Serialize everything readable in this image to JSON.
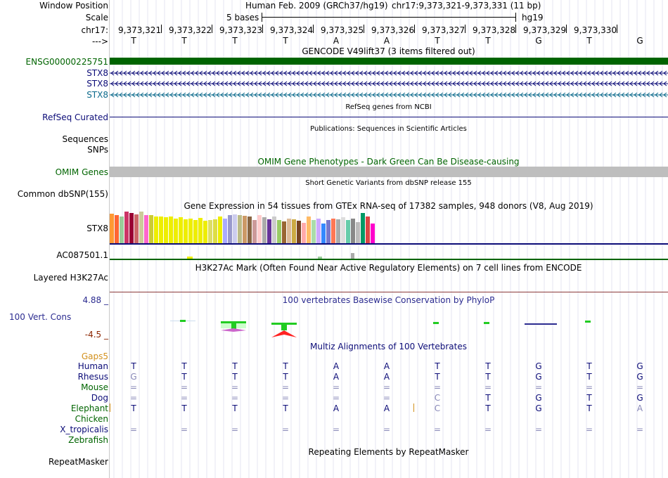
{
  "labels": {
    "window_position": "Window Position",
    "scale": "Scale",
    "chrom": "chr17:",
    "arrow": "--->",
    "ensg": "ENSG00000225751",
    "stx8_1": "STX8",
    "stx8_2": "STX8",
    "stx8_3": "STX8",
    "refseq": "RefSeq Curated",
    "sequences": "Sequences",
    "snps": "SNPs",
    "omim": "OMIM Genes",
    "dbsnp": "Common dbSNP(155)",
    "gtex_gene": "STX8",
    "ac087501": "AC087501.1",
    "h3k27ac": "Layered H3K27Ac",
    "cons_max": "4.88 _",
    "cons": "100 Vert. Cons",
    "cons_min": "-4.5 _",
    "gaps": "Gaps5",
    "species": [
      "Human",
      "Rhesus",
      "Mouse",
      "Dog",
      "Elephant",
      "Chicken",
      "X_tropicalis",
      "Zebrafish"
    ],
    "repeatmasker": "RepeatMasker"
  },
  "header": {
    "assembly": "Human Feb. 2009 (GRCh37/hg19)",
    "position": "chr17:9,373,321-9,373,331 (11 bp)",
    "scale_text": "5 bases",
    "scale_db": "hg19",
    "coords": [
      "9,373,321",
      "9,373,322",
      "9,373,323",
      "9,373,324",
      "9,373,325",
      "9,373,326",
      "9,373,327",
      "9,373,328",
      "9,373,329",
      "9,373,330"
    ],
    "bases": [
      "T",
      "T",
      "T",
      "T",
      "A",
      "A",
      "T",
      "T",
      "G",
      "T",
      "G"
    ]
  },
  "titles": {
    "gencode": "GENCODE V49lift37 (3 items filtered out)",
    "refseq": "RefSeq genes from NCBI",
    "publications": "Publications: Sequences in Scientific Articles",
    "omim": "OMIM Gene Phenotypes - Dark Green Can Be Disease-causing",
    "dbsnp": "Short Genetic Variants from dbSNP release 155",
    "gtex": "Gene Expression in 54 tissues from GTEx RNA-seq of 17382 samples, 948 donors (V8, Aug 2019)",
    "h3k27ac": "H3K27Ac Mark (Often Found Near Active Regulatory Elements) on 7 cell lines from ENCODE",
    "phylop": "100 vertebrates Basewise Conservation by PhyloP",
    "multiz": "Multiz Alignments of 100 Vertebrates",
    "repeatmasker": "Repeating Elements by RepeatMasker"
  },
  "alignment": [
    [
      "T",
      "T",
      "T",
      "T",
      "A",
      "A",
      "T",
      "T",
      "G",
      "T",
      "G"
    ],
    [
      "G",
      "T",
      "T",
      "T",
      "A",
      "A",
      "T",
      "T",
      "G",
      "T",
      "G"
    ],
    [
      "=",
      "=",
      "=",
      "=",
      "=",
      "=",
      "=",
      "=",
      "=",
      "=",
      "="
    ],
    [
      "=",
      "=",
      "=",
      "=",
      "=",
      "=",
      "C",
      "T",
      "G",
      "T",
      "G"
    ],
    [
      "T",
      "T",
      "T",
      "T",
      "A",
      "A",
      "C",
      "T",
      "G",
      "T",
      "A"
    ],
    [
      "",
      "",
      "",
      "",
      "",
      "",
      "",
      "",
      "",
      "",
      ""
    ],
    [
      "=",
      "=",
      "=",
      "=",
      "=",
      "=",
      "=",
      "=",
      "=",
      "=",
      "="
    ],
    [
      "",
      "",
      "",
      "",
      "",
      "",
      "",
      "",
      "",
      "",
      ""
    ]
  ],
  "gtex_levels": [
    0.9,
    0.85,
    0.8,
    0.95,
    0.92,
    0.88,
    0.96,
    0.86,
    0.85,
    0.8,
    0.8,
    0.78,
    0.8,
    0.75,
    0.78,
    0.72,
    0.74,
    0.7,
    0.76,
    0.68,
    0.7,
    0.72,
    0.8,
    0.74,
    0.85,
    0.88,
    0.86,
    0.84,
    0.8,
    0.7,
    0.85,
    0.78,
    0.72,
    0.8,
    0.7,
    0.65,
    0.75,
    0.72,
    0.68,
    0.62,
    0.8,
    0.7,
    0.74,
    0.6,
    0.7,
    0.75,
    0.72,
    0.78,
    0.7,
    0.74,
    0.64,
    0.92,
    0.8,
    0.6
  ],
  "gtex_colors": [
    "#ff9933",
    "#ff6633",
    "#99cc99",
    "#cc3366",
    "#990033",
    "#cc6666",
    "#cccc99",
    "#ff66cc",
    "#cccc33",
    "#eeee00",
    "#eeee00",
    "#eeee00",
    "#eeee00",
    "#eeee00",
    "#eeee00",
    "#eeee00",
    "#eeee00",
    "#eeee00",
    "#eeee00",
    "#eeee00",
    "#dddd66",
    "#dddd44",
    "#eeee00",
    "#aaaaff",
    "#9999cc",
    "#ccccee",
    "#bbbb88",
    "#cc9966",
    "#886644",
    "#cc9999",
    "#ffcccc",
    "#aaaaaa",
    "#663399",
    "#cccccc",
    "#99cc66",
    "#996633",
    "#ddbb99",
    "#ccaa44",
    "#774422",
    "#ffaaaa",
    "#ffbb66",
    "#aaddaa",
    "#ccaaff",
    "#3388ff",
    "#7777cc",
    "#ff7755",
    "#aaaaaa",
    "#dddddd",
    "#66ccaa",
    "#888888",
    "#bbbbbb",
    "#009966",
    "#dd4444",
    "#ff00cc"
  ],
  "colors": {
    "gencode": "#006400",
    "stx8_dark": "#0c0c78",
    "stx8_teal": "#0c6a8c",
    "refseq": "#0c0c78",
    "omim_bar": "#bebebe",
    "omim_label": "#006400",
    "h3k_line": "#8b3a3a",
    "phylop": "#2c2c90",
    "cons_max": "#2c2c90",
    "cons_min": "#8b2500",
    "gaps": "#d2901c",
    "species_dark": "#0c0c78",
    "species_green": "#006400",
    "align_text": "#0c0c78",
    "align_light": "#8888b8"
  }
}
